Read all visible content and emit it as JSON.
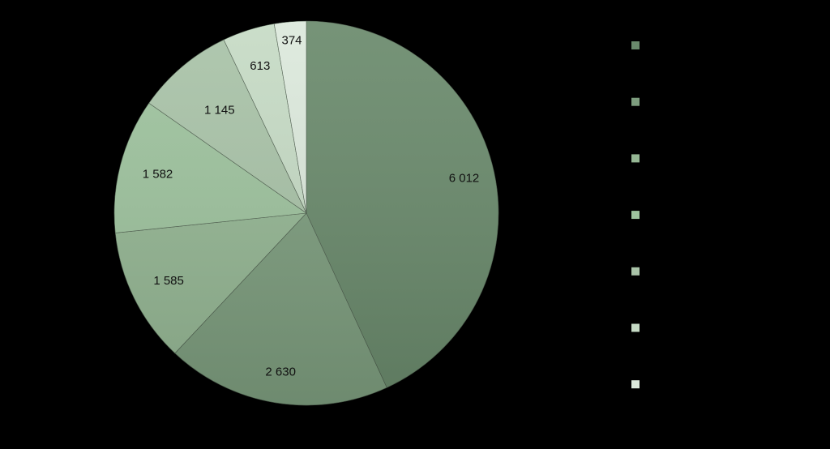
{
  "chart_data": {
    "type": "pie",
    "title": "",
    "start_angle": "12 o'clock",
    "direction": "clockwise",
    "legend_placement": "right",
    "slices": [
      {
        "label": "6 012",
        "value": 6012,
        "color": "#6a8a6c"
      },
      {
        "label": "2 630",
        "value": 2630,
        "color": "#7d9d7e"
      },
      {
        "label": "1 585",
        "value": 1585,
        "color": "#95b794"
      },
      {
        "label": "1 582",
        "value": 1582,
        "color": "#9ec39e"
      },
      {
        "label": "1 145",
        "value": 1145,
        "color": "#a9c3a8"
      },
      {
        "label": "613",
        "value": 613,
        "color": "#c6dbc5"
      },
      {
        "label": "374",
        "value": 374,
        "color": "#dce9dc"
      }
    ]
  }
}
